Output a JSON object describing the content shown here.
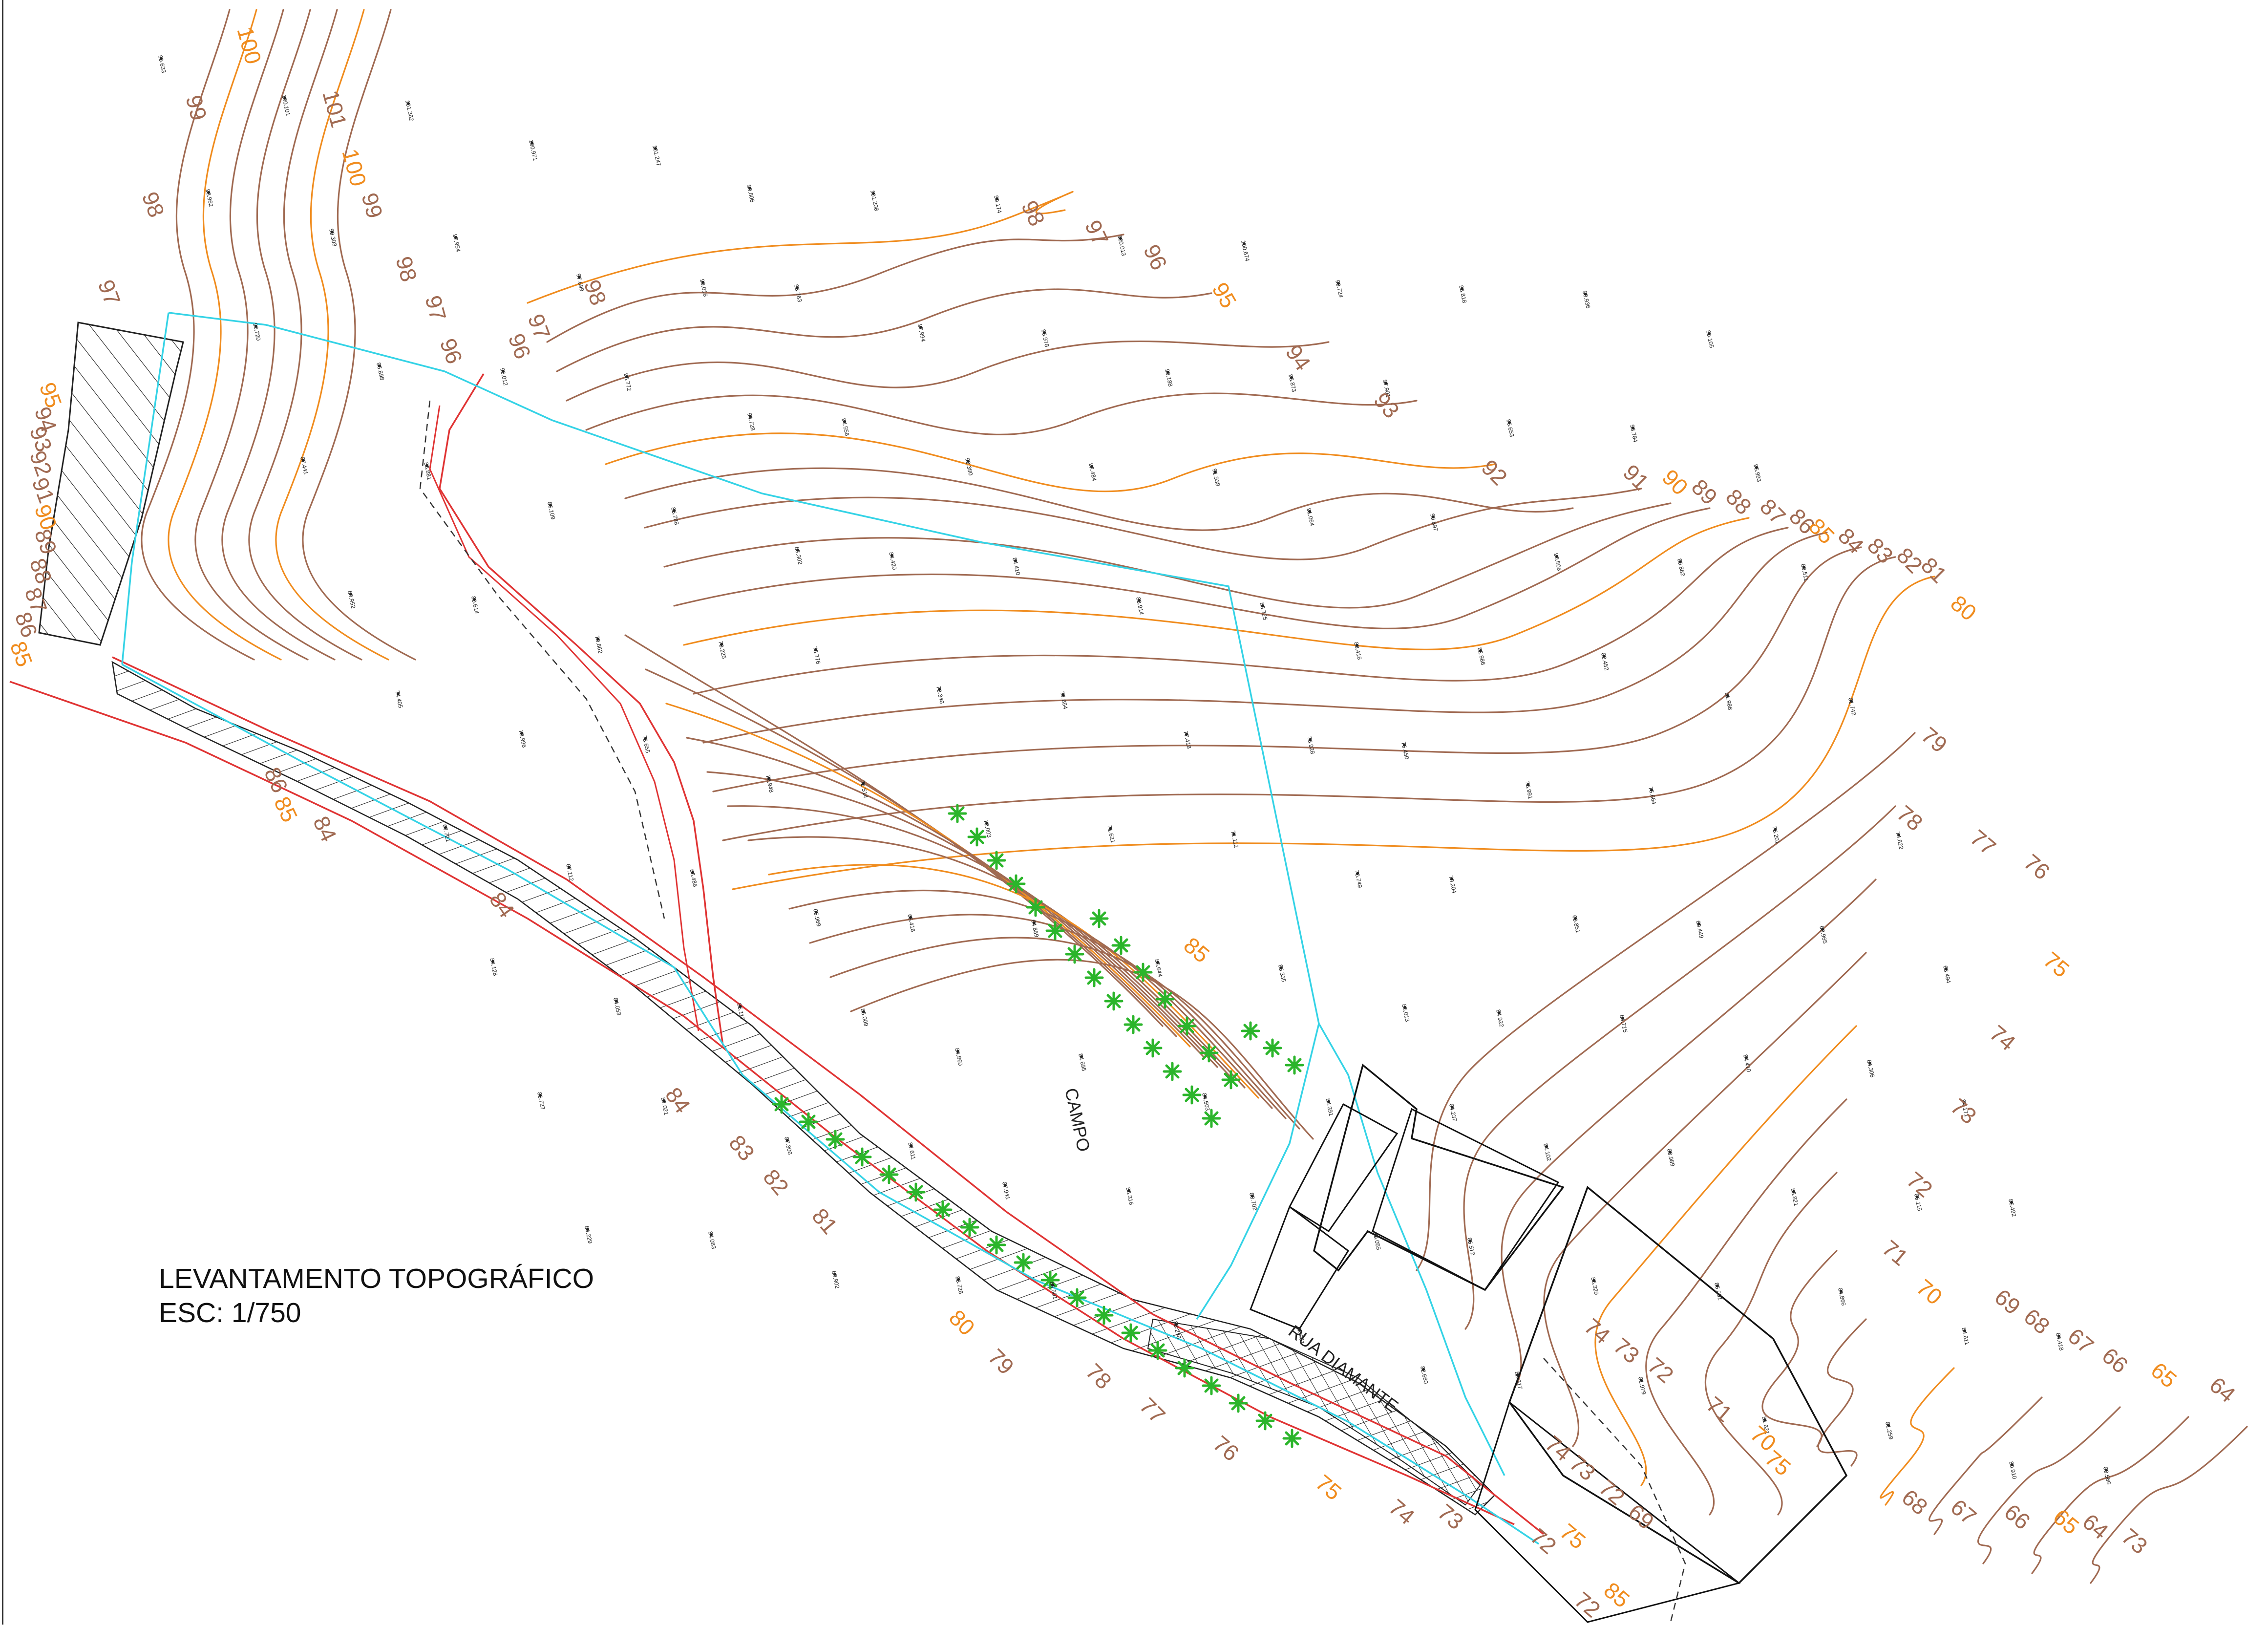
{
  "title": {
    "line1": "LEVANTAMENTO TOPOGRÁFICO",
    "line2": "ESC: 1/750"
  },
  "labels": {
    "campo": "CAMPO",
    "street": "RUA DIAMANTE"
  },
  "colors": {
    "contour_minor": "#a06a52",
    "contour_major": "#f08c1e",
    "property_boundary": "#35d3e6",
    "road_line": "#e03434",
    "building": "#111111",
    "hatch": "#222222",
    "tree": "#2bb52b"
  },
  "contour_labels": [
    {
      "text": "100",
      "major": true
    },
    {
      "text": "101",
      "major": false
    },
    {
      "text": "100",
      "major": true
    },
    {
      "text": "99",
      "major": false
    },
    {
      "text": "99",
      "major": false
    },
    {
      "text": "98",
      "major": false
    },
    {
      "text": "98",
      "major": false
    },
    {
      "text": "97",
      "major": false
    },
    {
      "text": "97",
      "major": false
    },
    {
      "text": "96",
      "major": false
    },
    {
      "text": "96",
      "major": false
    },
    {
      "text": "97",
      "major": false
    },
    {
      "text": "98",
      "major": false
    },
    {
      "text": "98",
      "major": false
    },
    {
      "text": "97",
      "major": false
    },
    {
      "text": "96",
      "major": false
    },
    {
      "text": "95",
      "major": true
    },
    {
      "text": "94",
      "major": false
    },
    {
      "text": "93",
      "major": false
    },
    {
      "text": "92",
      "major": false
    },
    {
      "text": "91",
      "major": false
    },
    {
      "text": "90",
      "major": true
    },
    {
      "text": "89",
      "major": false
    },
    {
      "text": "88",
      "major": false
    },
    {
      "text": "87",
      "major": false
    },
    {
      "text": "86",
      "major": false
    },
    {
      "text": "85",
      "major": true
    },
    {
      "text": "84",
      "major": false
    },
    {
      "text": "83",
      "major": false
    },
    {
      "text": "82",
      "major": false
    },
    {
      "text": "81",
      "major": false
    },
    {
      "text": "80",
      "major": true
    },
    {
      "text": "79",
      "major": false
    },
    {
      "text": "78",
      "major": false
    },
    {
      "text": "77",
      "major": false
    },
    {
      "text": "76",
      "major": false
    },
    {
      "text": "75",
      "major": true
    },
    {
      "text": "74",
      "major": false
    },
    {
      "text": "73",
      "major": false
    },
    {
      "text": "72",
      "major": false
    },
    {
      "text": "71",
      "major": false
    },
    {
      "text": "70",
      "major": true
    },
    {
      "text": "69",
      "major": false
    },
    {
      "text": "68",
      "major": false
    },
    {
      "text": "67",
      "major": false
    },
    {
      "text": "66",
      "major": false
    },
    {
      "text": "65",
      "major": true
    },
    {
      "text": "64",
      "major": false
    },
    {
      "text": "95",
      "major": true
    },
    {
      "text": "94",
      "major": false
    },
    {
      "text": "93",
      "major": false
    },
    {
      "text": "92",
      "major": false
    },
    {
      "text": "91",
      "major": false
    },
    {
      "text": "90",
      "major": true
    },
    {
      "text": "89",
      "major": false
    },
    {
      "text": "88",
      "major": false
    },
    {
      "text": "87",
      "major": false
    },
    {
      "text": "86",
      "major": false
    },
    {
      "text": "85",
      "major": true
    },
    {
      "text": "86",
      "major": false
    },
    {
      "text": "85",
      "major": true
    },
    {
      "text": "84",
      "major": false
    },
    {
      "text": "84",
      "major": false
    },
    {
      "text": "84",
      "major": false
    },
    {
      "text": "83",
      "major": false
    },
    {
      "text": "82",
      "major": false
    },
    {
      "text": "81",
      "major": false
    },
    {
      "text": "80",
      "major": true
    },
    {
      "text": "79",
      "major": false
    },
    {
      "text": "78",
      "major": false
    },
    {
      "text": "77",
      "major": false
    },
    {
      "text": "76",
      "major": false
    },
    {
      "text": "75",
      "major": true
    },
    {
      "text": "74",
      "major": false
    },
    {
      "text": "73",
      "major": false
    },
    {
      "text": "72",
      "major": false
    },
    {
      "text": "75",
      "major": true
    },
    {
      "text": "74",
      "major": false
    },
    {
      "text": "73",
      "major": false
    },
    {
      "text": "72",
      "major": false
    },
    {
      "text": "71",
      "major": false
    },
    {
      "text": "70",
      "major": true
    },
    {
      "text": "75",
      "major": true
    },
    {
      "text": "74",
      "major": false
    },
    {
      "text": "73",
      "major": false
    },
    {
      "text": "72",
      "major": false
    },
    {
      "text": "69",
      "major": false
    },
    {
      "text": "68",
      "major": false
    },
    {
      "text": "67",
      "major": false
    },
    {
      "text": "66",
      "major": false
    },
    {
      "text": "65",
      "major": true
    },
    {
      "text": "64",
      "major": false
    },
    {
      "text": "73",
      "major": false
    },
    {
      "text": "72",
      "major": false
    },
    {
      "text": "85",
      "major": true
    },
    {
      "text": "85",
      "major": true
    }
  ],
  "spot_elevations": [
    "99.633",
    "100.101",
    "101.362",
    "100.971",
    "101.247",
    "99.806",
    "101.208",
    "99.174",
    "100.013",
    "100.674",
    "99.724",
    "98.818",
    "98.936",
    "99.105",
    "98.962",
    "99.303",
    "97.954",
    "97.699",
    "99.016",
    "98.763",
    "97.994",
    "96.978",
    "99.188",
    "98.873",
    "97.901",
    "96.653",
    "96.784",
    "95.993",
    "96.720",
    "96.898",
    "96.012",
    "95.772",
    "94.728",
    "94.556",
    "93.380",
    "92.484",
    "91.938",
    "91.064",
    "90.897",
    "90.506",
    "89.882",
    "89.511",
    "87.441",
    "86.881",
    "86.109",
    "85.788",
    "85.302",
    "84.420",
    "84.410",
    "83.914",
    "83.725",
    "83.416",
    "82.986",
    "82.452",
    "81.988",
    "81.742",
    "80.952",
    "80.614",
    "79.862",
    "79.225",
    "78.776",
    "78.346",
    "77.854",
    "77.418",
    "76.928",
    "76.450",
    "75.991",
    "75.664",
    "75.201",
    "74.822",
    "74.405",
    "73.996",
    "73.655",
    "72.948",
    "72.514",
    "72.003",
    "71.621",
    "71.112",
    "70.749",
    "70.204",
    "69.851",
    "69.449",
    "68.965",
    "68.494",
    "67.721",
    "67.112",
    "66.486",
    "65.969",
    "65.418",
    "64.859",
    "85.644",
    "85.335",
    "85.013",
    "84.922",
    "84.715",
    "84.470",
    "84.306",
    "84.171",
    "84.128",
    "84.053",
    "85.117",
    "85.009",
    "84.860",
    "84.695",
    "84.503",
    "84.391",
    "84.237",
    "84.102",
    "83.989",
    "83.821",
    "86.115",
    "86.492",
    "86.727",
    "87.021",
    "87.306",
    "87.611",
    "87.941",
    "88.316",
    "88.702",
    "89.055",
    "85.572",
    "85.329",
    "85.091",
    "84.866",
    "84.611",
    "84.418",
    "84.229",
    "84.083",
    "83.902",
    "83.728",
    "83.501",
    "83.246",
    "82.961",
    "82.660",
    "82.317",
    "81.979",
    "81.621",
    "81.259",
    "80.910",
    "80.566"
  ]
}
